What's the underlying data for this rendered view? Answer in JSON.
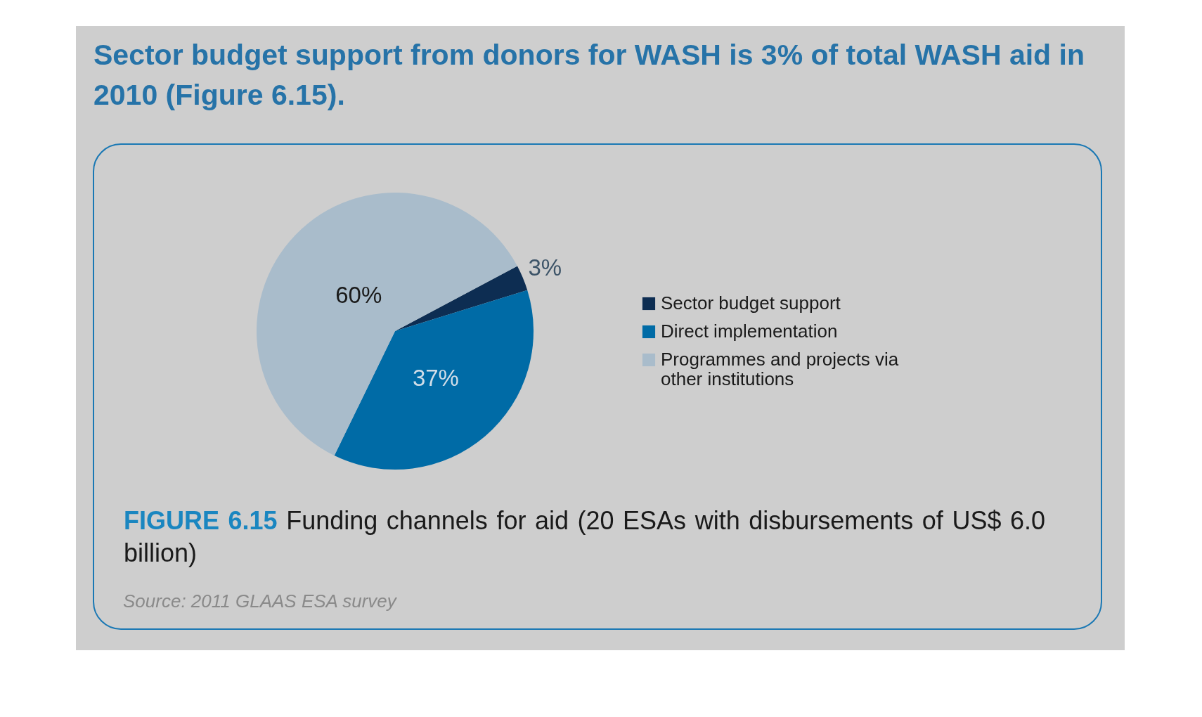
{
  "chart_data": {
    "type": "pie",
    "title": "Sector budget support from donors for WASH is 3% of total WASH aid in 2010 (Figure 6.15).",
    "categories": [
      "Sector budget support",
      "Direct implementation",
      "Programmes and projects via other institutions"
    ],
    "values": [
      3,
      37,
      60
    ],
    "colors": [
      "#0d2d52",
      "#006ba6",
      "#a9bccb"
    ],
    "value_labels": [
      "3%",
      "37%",
      "60%"
    ],
    "legend": "right",
    "annotations": [
      "FIGURE 6.15 Funding channels for aid (20 ESAs with disbursements of US$ 6.0 billion)",
      "Source: 2011 GLAAS ESA survey"
    ]
  }
}
